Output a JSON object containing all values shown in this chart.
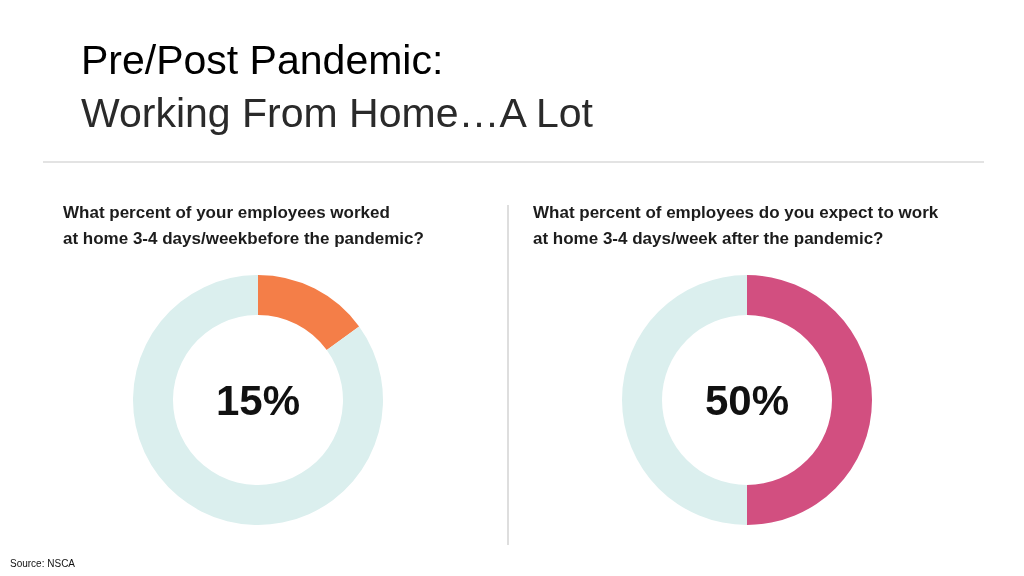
{
  "chart_data": [
    {
      "type": "donut",
      "title": "What percent of your employees worked\nat home 3-4 days/weekbefore the pandemic?",
      "categories": [
        null,
        null
      ],
      "values": [
        15,
        85
      ],
      "colors": [
        "#f47e48",
        "#dbefee"
      ],
      "annotations": [
        "Pre/Post Pandemic:",
        "Working From Home…A Lot",
        "15%",
        "Source: NSCA"
      ]
    },
    {
      "type": "donut",
      "title": "What percent of employees do you expect to work\nat home 3-4 days/week after the pandemic?",
      "categories": [
        null,
        null
      ],
      "values": [
        50,
        50
      ],
      "colors": [
        "#d24f80",
        "#dbefee"
      ],
      "annotations": [
        "50%"
      ]
    }
  ]
}
